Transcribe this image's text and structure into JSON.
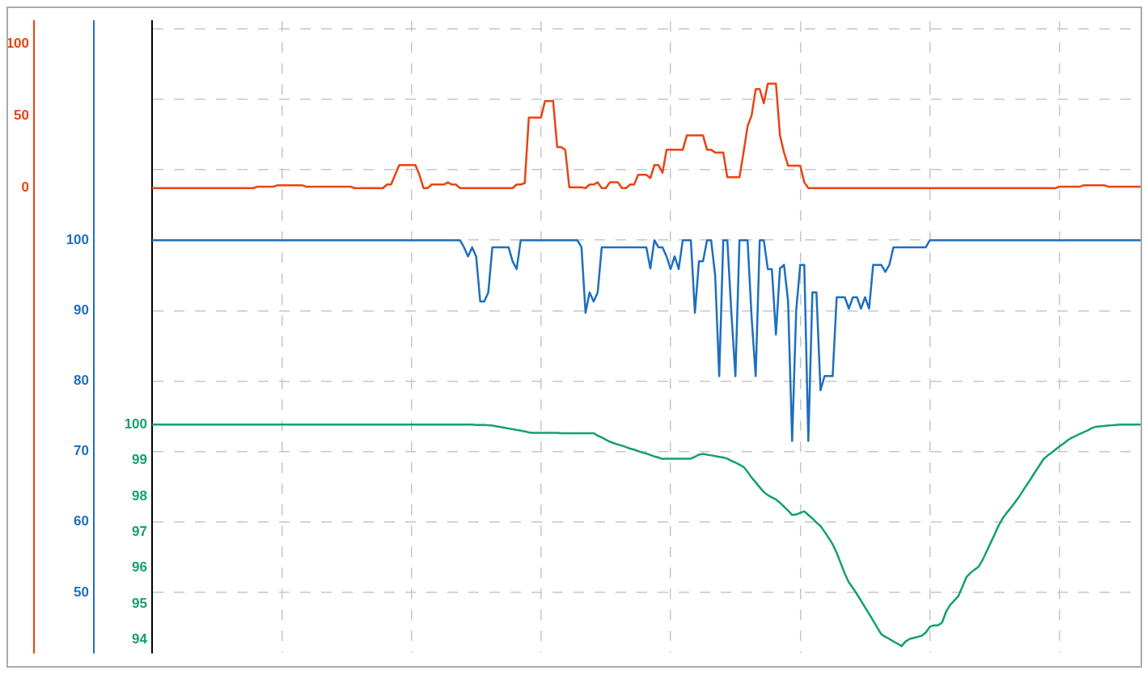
{
  "chart_data": {
    "type": "line",
    "categories": [
      null,
      null,
      null,
      null,
      null,
      null,
      null,
      null,
      null,
      null,
      null,
      null,
      null,
      null,
      null,
      null,
      null,
      null,
      null,
      null,
      null,
      null,
      null,
      null,
      null,
      null,
      null,
      null,
      null,
      null,
      null,
      null,
      null,
      null,
      null,
      null,
      null,
      null,
      null,
      null,
      null,
      null,
      null,
      null,
      null,
      null,
      null,
      null,
      null,
      null,
      null,
      null,
      null,
      null,
      null,
      null,
      null,
      null,
      null,
      null,
      null,
      null,
      null,
      null,
      null,
      null,
      null,
      null,
      null,
      null,
      null,
      null,
      null,
      null,
      null,
      null,
      null,
      null,
      null,
      null,
      null,
      null,
      null,
      null,
      null,
      null,
      null,
      null,
      null,
      null,
      null,
      null,
      null,
      null,
      null,
      null,
      null,
      null,
      null,
      null,
      null,
      null,
      null,
      null,
      null,
      null,
      null,
      null,
      null,
      null,
      null,
      null,
      null,
      null,
      null,
      null,
      null,
      null,
      null,
      null,
      null,
      null,
      null,
      null,
      null,
      null,
      null,
      null,
      null,
      null,
      null,
      null,
      null,
      null,
      null,
      null,
      null,
      null,
      null,
      null,
      null,
      null,
      null,
      null,
      null,
      null,
      null,
      null,
      null,
      null,
      null,
      null,
      null,
      null,
      null,
      null,
      null,
      null,
      null,
      null,
      null,
      null,
      null,
      null,
      null,
      null,
      null,
      null,
      null,
      null,
      null,
      null,
      null,
      null,
      null,
      null,
      null,
      null,
      null,
      null,
      null,
      null,
      null,
      null,
      null,
      null,
      null,
      null,
      null,
      null,
      null,
      null,
      null,
      null,
      null,
      null,
      null,
      null,
      null,
      null,
      null,
      null,
      null,
      null,
      null,
      null,
      null,
      null,
      null,
      null,
      null,
      null,
      null,
      null,
      null,
      null,
      null,
      null,
      null,
      null,
      null,
      null,
      null,
      null,
      null,
      null,
      null,
      null,
      null,
      null,
      null,
      null,
      null,
      null,
      null,
      null,
      null,
      null,
      null,
      null,
      null,
      null,
      null,
      null,
      null
    ],
    "ylim": [
      93.63,
      111.25
    ],
    "yticks": [
      94,
      95,
      96,
      97,
      98,
      99,
      100
    ],
    "y2lim": [
      41.4,
      131.1
    ],
    "y2ticks": [
      50,
      60,
      70,
      80,
      90,
      100,
      {
        "value": 110,
        "label": null
      },
      {
        "value": 120,
        "label": null
      },
      {
        "value": 130,
        "label": null
      }
    ],
    "y3lim": [
      -323,
      116
    ],
    "y3ticks": [
      0,
      50,
      100
    ],
    "tick_labels": "y",
    "grid": true,
    "marker": "none",
    "line_style": "solid",
    "series": [
      {
        "axis": "y3",
        "color": "#e8440f",
        "values": [
          0,
          0,
          0,
          0,
          0,
          0,
          0,
          0,
          0,
          0,
          0,
          0,
          0,
          0,
          0,
          0,
          0,
          0,
          0,
          0,
          0,
          0,
          0,
          0,
          0,
          0,
          1,
          1,
          1,
          1,
          1,
          2,
          2,
          2,
          2,
          2,
          2,
          2,
          1,
          1,
          1,
          1,
          1,
          1,
          1,
          1,
          1,
          1,
          1,
          1,
          0,
          0,
          0,
          0,
          0,
          0,
          0,
          0,
          2.5,
          2.5,
          9.2,
          16,
          16,
          16,
          16,
          16,
          9.2,
          0,
          0,
          2.5,
          2.5,
          2.5,
          2.5,
          4,
          2.5,
          2.5,
          0,
          0,
          0,
          0,
          0,
          0,
          0,
          0,
          0,
          0,
          0,
          0,
          0,
          0,
          2.5,
          2.5,
          3.5,
          49,
          49,
          49,
          49,
          60.5,
          60.5,
          60.5,
          28.5,
          28.5,
          26.6,
          0.5,
          0.5,
          0.5,
          0.5,
          0,
          2.5,
          2.5,
          4,
          0,
          0,
          4,
          4,
          4,
          0,
          0,
          2.5,
          2.5,
          9.2,
          9.2,
          9.2,
          7,
          16,
          16,
          10.7,
          26.6,
          26.6,
          26.6,
          26.6,
          26.6,
          36.6,
          36.6,
          36.6,
          36.6,
          36.6,
          26.6,
          26.6,
          24.7,
          24.7,
          24.7,
          7.5,
          7.5,
          7.5,
          7.5,
          24.7,
          43,
          50.5,
          68.8,
          68.8,
          59,
          72.6,
          72.6,
          72.6,
          36.6,
          24.7,
          15.6,
          15.6,
          15.6,
          15.6,
          4,
          0,
          0,
          0,
          0,
          0,
          0,
          0,
          0,
          0,
          0,
          0,
          0,
          0,
          0,
          0,
          0,
          0,
          0,
          0,
          0,
          0,
          0,
          0,
          0,
          0,
          0,
          0,
          0,
          0,
          0,
          0,
          0,
          0,
          0,
          0,
          0,
          0,
          0,
          0,
          0,
          0,
          0,
          0,
          0,
          0,
          0,
          0,
          0,
          0,
          0,
          0,
          0,
          0,
          0,
          0,
          0,
          0,
          0,
          0,
          0,
          0,
          0,
          1,
          1,
          1,
          1,
          1,
          1,
          2,
          2,
          2,
          2,
          2,
          2,
          1,
          1,
          1,
          1,
          1,
          1,
          1,
          1,
          1
        ]
      },
      {
        "axis": "y2",
        "color": "#1e6fbe",
        "values": [
          100,
          100,
          100,
          100,
          100,
          100,
          100,
          100,
          100,
          100,
          100,
          100,
          100,
          100,
          100,
          100,
          100,
          100,
          100,
          100,
          100,
          100,
          100,
          100,
          100,
          100,
          100,
          100,
          100,
          100,
          100,
          100,
          100,
          100,
          100,
          100,
          100,
          100,
          100,
          100,
          100,
          100,
          100,
          100,
          100,
          100,
          100,
          100,
          100,
          100,
          100,
          100,
          100,
          100,
          100,
          100,
          100,
          100,
          100,
          100,
          100,
          100,
          100,
          100,
          100,
          100,
          100,
          100,
          100,
          100,
          100,
          100,
          100,
          100,
          100,
          100,
          100,
          99,
          97.7,
          99,
          97.7,
          91.3,
          91.3,
          92.6,
          99,
          99,
          99,
          99,
          99,
          97,
          95.9,
          100,
          100,
          100,
          100,
          100,
          100,
          100,
          100,
          100,
          100,
          100,
          100,
          100,
          100,
          100,
          99,
          89.7,
          92.6,
          91.3,
          92.6,
          99,
          99,
          99,
          99,
          99,
          99,
          99,
          99,
          99,
          99,
          99,
          99,
          96,
          100,
          99,
          99,
          97.7,
          95.9,
          97.7,
          95.9,
          100,
          100,
          100,
          89.7,
          97,
          97,
          100,
          100,
          95,
          80.7,
          100,
          100,
          89.7,
          80.7,
          100,
          100,
          100,
          89,
          80.7,
          100,
          100,
          95.9,
          95.9,
          86.6,
          96,
          96.5,
          91.3,
          71.5,
          90,
          96.5,
          96.5,
          71.5,
          92.6,
          92.6,
          78.7,
          80.7,
          80.7,
          80.7,
          91.9,
          91.9,
          91.9,
          90.3,
          91.9,
          91.9,
          90.3,
          91.9,
          90.3,
          96.5,
          96.5,
          96.5,
          95.5,
          96.5,
          99,
          99,
          99,
          99,
          99,
          99,
          99,
          99,
          99,
          100,
          100,
          100,
          100,
          100,
          100,
          100,
          100,
          100,
          100,
          100,
          100,
          100,
          100,
          100,
          100,
          100,
          100,
          100,
          100,
          100,
          100,
          100,
          100,
          100,
          100,
          100,
          100,
          100,
          100,
          100,
          100,
          100,
          100,
          100,
          100,
          100,
          100,
          100,
          100,
          100,
          100,
          100,
          100,
          100,
          100,
          100,
          100,
          100,
          100,
          100,
          100,
          100
        ]
      },
      {
        "axis": "y",
        "color": "#14a06b",
        "values": [
          100,
          100,
          100,
          100,
          100,
          100,
          100,
          100,
          100,
          100,
          100,
          100,
          100,
          100,
          100,
          100,
          100,
          100,
          100,
          100,
          100,
          100,
          100,
          100,
          100,
          100,
          100,
          100,
          100,
          100,
          100,
          100,
          100,
          100,
          100,
          100,
          100,
          100,
          100,
          100,
          100,
          100,
          100,
          100,
          100,
          100,
          100,
          100,
          100,
          100,
          100,
          100,
          100,
          100,
          100,
          100,
          100,
          100,
          100,
          100,
          100,
          100,
          100,
          100,
          100,
          100,
          100,
          100,
          100,
          100,
          100,
          100,
          100,
          100,
          100,
          100,
          100,
          100,
          100,
          100,
          99.99,
          99.99,
          99.99,
          99.98,
          99.97,
          99.95,
          99.93,
          99.91,
          99.89,
          99.87,
          99.85,
          99.83,
          99.81,
          99.78,
          99.77,
          99.77,
          99.77,
          99.77,
          99.77,
          99.77,
          99.77,
          99.76,
          99.76,
          99.76,
          99.76,
          99.76,
          99.76,
          99.76,
          99.76,
          99.76,
          99.69,
          99.64,
          99.58,
          99.52,
          99.48,
          99.44,
          99.41,
          99.37,
          99.33,
          99.3,
          99.26,
          99.22,
          99.19,
          99.15,
          99.11,
          99.08,
          99.04,
          99.05,
          99.05,
          99.05,
          99.05,
          99.05,
          99.05,
          99.05,
          99.1,
          99.16,
          99.18,
          99.16,
          99.14,
          99.12,
          99.1,
          99.08,
          99.05,
          98.99,
          98.94,
          98.88,
          98.82,
          98.68,
          98.52,
          98.39,
          98.25,
          98.12,
          98.03,
          97.97,
          97.91,
          97.82,
          97.71,
          97.6,
          97.48,
          97.49,
          97.54,
          97.58,
          97.48,
          97.38,
          97.27,
          97.17,
          97.01,
          96.84,
          96.66,
          96.42,
          96.13,
          95.84,
          95.6,
          95.44,
          95.27,
          95.09,
          94.9,
          94.72,
          94.53,
          94.34,
          94.15,
          94.08,
          94.02,
          93.95,
          93.89,
          93.82,
          93.95,
          94.02,
          94.05,
          94.08,
          94.11,
          94.2,
          94.36,
          94.4,
          94.4,
          94.47,
          94.78,
          94.97,
          95.09,
          95.21,
          95.47,
          95.74,
          95.86,
          95.95,
          96.03,
          96.22,
          96.46,
          96.7,
          96.94,
          97.19,
          97.39,
          97.54,
          97.68,
          97.83,
          97.98,
          98.16,
          98.33,
          98.5,
          98.68,
          98.85,
          99.03,
          99.13,
          99.21,
          99.3,
          99.39,
          99.47,
          99.56,
          99.63,
          99.68,
          99.74,
          99.79,
          99.84,
          99.9,
          99.94,
          99.95,
          99.96,
          99.97,
          99.98,
          99.99,
          100,
          100,
          100,
          100,
          100,
          100
        ]
      }
    ]
  }
}
